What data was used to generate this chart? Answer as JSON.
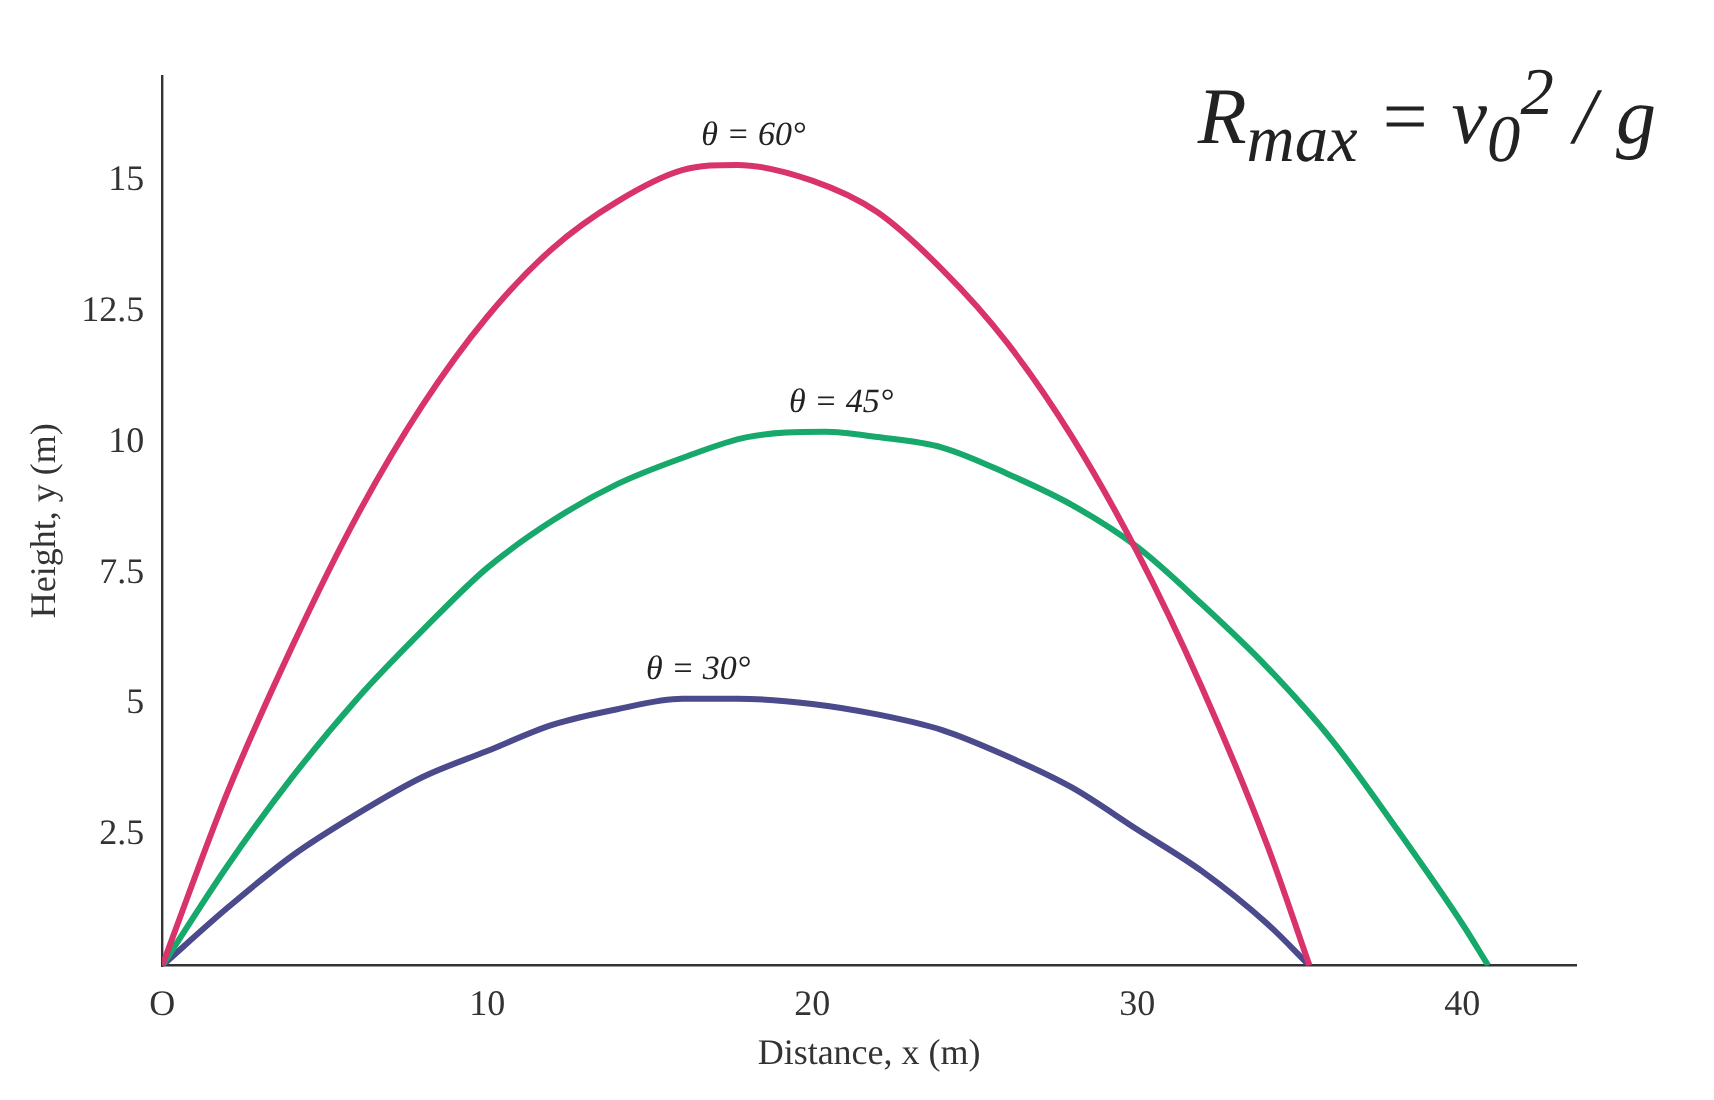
{
  "chart_data": {
    "type": "line",
    "xlabel": "Distance, x (m)",
    "ylabel": "Height, y (m)",
    "xlim": [
      0,
      43.5
    ],
    "ylim": [
      0,
      17
    ],
    "xticks": [
      {
        "value": 0,
        "label": "O"
      },
      10,
      20,
      30,
      40
    ],
    "yticks": [
      2.5,
      5,
      7.5,
      10,
      12.5,
      15
    ],
    "grid": false,
    "legend": false,
    "marker": "none",
    "line_style": "solid",
    "annotations": [
      "R$_{max}$ = v$_{0}$$^{2}$ / g"
    ],
    "series": [
      {
        "name": "θ = 60°",
        "color": "#d9336c",
        "x": [
          0,
          2,
          4,
          6,
          8,
          10,
          12,
          14,
          16,
          17.7,
          20,
          22,
          24,
          26,
          28,
          30,
          32,
          34,
          35.3
        ],
        "values": [
          0,
          3.3,
          6.1,
          8.6,
          10.7,
          12.4,
          13.7,
          14.6,
          15.2,
          15.3,
          15.0,
          14.4,
          13.3,
          11.9,
          10.1,
          7.9,
          5.3,
          2.3,
          0
        ]
      },
      {
        "name": "θ = 45°",
        "color": "#17a86b",
        "x": [
          0,
          2,
          4,
          6,
          8,
          10,
          12,
          14,
          16,
          18,
          20.4,
          22,
          24,
          26,
          28,
          30,
          32,
          34,
          36,
          38,
          40,
          40.8
        ],
        "values": [
          0,
          1.9,
          3.6,
          5.1,
          6.4,
          7.6,
          8.5,
          9.2,
          9.7,
          10.1,
          10.2,
          10.1,
          9.9,
          9.4,
          8.8,
          8.0,
          6.9,
          5.7,
          4.3,
          2.6,
          0.8,
          0
        ]
      },
      {
        "name": "θ = 30°",
        "color": "#4b4a8c",
        "x": [
          0,
          2,
          4,
          6,
          8,
          10,
          12,
          14,
          16,
          17.7,
          20,
          22,
          24,
          26,
          28,
          30,
          32,
          34,
          35.3
        ],
        "values": [
          0,
          1.1,
          2.1,
          2.9,
          3.6,
          4.1,
          4.6,
          4.9,
          5.1,
          5.1,
          5.0,
          4.8,
          4.5,
          4.0,
          3.4,
          2.6,
          1.8,
          0.8,
          0
        ]
      }
    ]
  }
}
